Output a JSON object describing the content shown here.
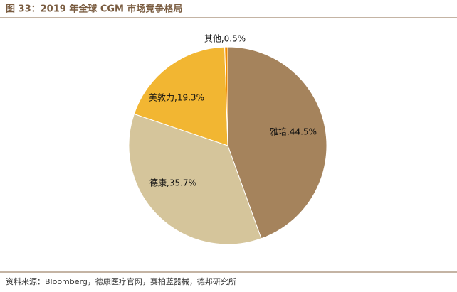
{
  "chart_data": {
    "type": "pie",
    "title": "图 33：2019 年全球 CGM 市场竞争格局",
    "values": [
      44.5,
      35.7,
      19.3,
      0.5
    ],
    "value_labels": [
      "雅培,44.5%",
      "德康,35.7%",
      "美敦力,19.3%",
      "其他,0.5%"
    ],
    "colors": [
      "#a5835c",
      "#d5c59b",
      "#f2b632",
      "#f08c00"
    ],
    "source": "资料来源：Bloomberg，德康医疗官网，赛柏蓝器械，德邦研究所"
  }
}
